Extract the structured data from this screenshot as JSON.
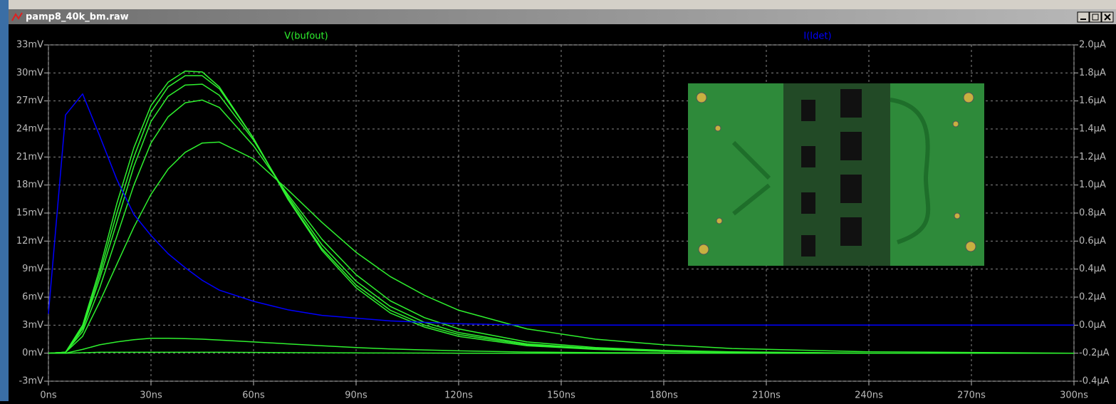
{
  "window": {
    "title": "pamp8_40k_bm.raw"
  },
  "chart_data": {
    "type": "line",
    "x": [
      0,
      5,
      10,
      15,
      20,
      25,
      30,
      35,
      40,
      45,
      50,
      60,
      70,
      80,
      90,
      100,
      110,
      120,
      140,
      160,
      180,
      200,
      240,
      300
    ],
    "xlim": [
      0,
      300
    ],
    "xticks": [
      {
        "value": 0,
        "label": "0ns"
      },
      {
        "value": 30,
        "label": "30ns"
      },
      {
        "value": 60,
        "label": "60ns"
      },
      {
        "value": 90,
        "label": "90ns"
      },
      {
        "value": 120,
        "label": "120ns"
      },
      {
        "value": 150,
        "label": "150ns"
      },
      {
        "value": 180,
        "label": "180ns"
      },
      {
        "value": 210,
        "label": "210ns"
      },
      {
        "value": 240,
        "label": "240ns"
      },
      {
        "value": 270,
        "label": "270ns"
      },
      {
        "value": 300,
        "label": "300ns"
      }
    ],
    "ylim": [
      -3,
      33
    ],
    "yticks": [
      {
        "value": -3,
        "label": "-3mV"
      },
      {
        "value": 0,
        "label": "0mV"
      },
      {
        "value": 3,
        "label": "3mV"
      },
      {
        "value": 6,
        "label": "6mV"
      },
      {
        "value": 9,
        "label": "9mV"
      },
      {
        "value": 12,
        "label": "12mV"
      },
      {
        "value": 15,
        "label": "15mV"
      },
      {
        "value": 18,
        "label": "18mV"
      },
      {
        "value": 21,
        "label": "21mV"
      },
      {
        "value": 24,
        "label": "24mV"
      },
      {
        "value": 27,
        "label": "27mV"
      },
      {
        "value": 30,
        "label": "30mV"
      },
      {
        "value": 33,
        "label": "33mV"
      }
    ],
    "y2lim": [
      -0.4,
      2.0
    ],
    "y2ticks": [
      {
        "value": -0.4,
        "label": "-0.4µA"
      },
      {
        "value": -0.2,
        "label": "-0.2µA"
      },
      {
        "value": 0.0,
        "label": "0.0µA"
      },
      {
        "value": 0.2,
        "label": "0.2µA"
      },
      {
        "value": 0.4,
        "label": "0.4µA"
      },
      {
        "value": 0.6,
        "label": "0.6µA"
      },
      {
        "value": 0.8,
        "label": "0.8µA"
      },
      {
        "value": 1.0,
        "label": "1.0µA"
      },
      {
        "value": 1.2,
        "label": "1.2µA"
      },
      {
        "value": 1.4,
        "label": "1.4µA"
      },
      {
        "value": 1.6,
        "label": "1.6µA"
      },
      {
        "value": 1.8,
        "label": "1.8µA"
      },
      {
        "value": 2.0,
        "label": "2.0µA"
      }
    ],
    "grid": true,
    "series": [
      {
        "name": "V(bufout)",
        "color": "#2ef02e",
        "axis": "y",
        "steps": [
          {
            "values": [
              0,
              0.1,
              3,
              9,
              16,
              22,
              26.5,
              29,
              30.2,
              30.1,
              28.5,
              23,
              16.5,
              11,
              7,
              4.3,
              2.8,
              1.8,
              0.8,
              0.4,
              0.2,
              0.1,
              0,
              0
            ]
          },
          {
            "values": [
              0,
              0.1,
              2.8,
              8.5,
              15,
              21,
              25.8,
              28.5,
              29.7,
              29.7,
              28.3,
              23,
              16.6,
              11.2,
              7.3,
              4.6,
              3,
              2,
              0.9,
              0.45,
              0.2,
              0.1,
              0,
              0
            ]
          },
          {
            "values": [
              0,
              0.1,
              2.6,
              8,
              14,
              20,
              24.8,
              27.5,
              28.7,
              28.8,
              27.6,
              22.8,
              16.8,
              11.6,
              7.7,
              5,
              3.3,
              2.2,
              1,
              0.5,
              0.25,
              0.1,
              0,
              0
            ]
          },
          {
            "values": [
              0,
              0.1,
              2.3,
              7,
              12.5,
              18,
              22.5,
              25.3,
              26.8,
              27.1,
              26.3,
              22.2,
              17,
              12.2,
              8.4,
              5.6,
              3.8,
              2.6,
              1.2,
              0.6,
              0.3,
              0.15,
              0,
              0
            ]
          },
          {
            "values": [
              0,
              0.1,
              1.8,
              5.5,
              9.5,
              13.5,
              17,
              19.7,
              21.5,
              22.5,
              22.6,
              20.8,
              17.5,
              14,
              10.8,
              8.2,
              6.2,
              4.6,
              2.6,
              1.5,
              0.9,
              0.5,
              0.15,
              0
            ]
          },
          {
            "values": [
              0,
              0,
              0.4,
              0.9,
              1.2,
              1.45,
              1.6,
              1.6,
              1.55,
              1.5,
              1.4,
              1.2,
              1,
              0.8,
              0.6,
              0.45,
              0.35,
              0.25,
              0.12,
              0.06,
              0.03,
              0.01,
              0,
              0
            ]
          },
          {
            "values": [
              0,
              0,
              0.05,
              0.1,
              0.1,
              0.1,
              0.1,
              0.1,
              0.1,
              0.1,
              0.1,
              0.08,
              0.06,
              0.04,
              0.03,
              0.02,
              0.01,
              0,
              0,
              0,
              0,
              0,
              0,
              0
            ]
          }
        ]
      },
      {
        "name": "I(Idet)",
        "color": "#0000ff",
        "axis": "y2",
        "steps": [
          {
            "values": [
              0.08,
              1.5,
              1.65,
              1.35,
              1.04,
              0.79,
              0.64,
              0.51,
              0.41,
              0.32,
              0.25,
              0.17,
              0.11,
              0.07,
              0.05,
              0.03,
              0.02,
              0.01,
              0,
              0,
              0,
              0,
              0,
              0
            ]
          }
        ]
      }
    ]
  }
}
